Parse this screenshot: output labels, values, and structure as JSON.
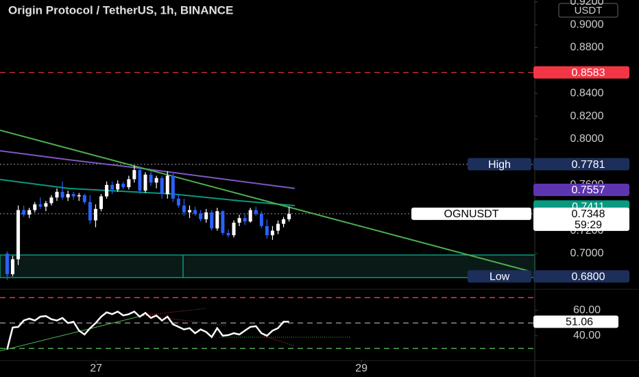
{
  "chart_data": {
    "type": "candlestick",
    "title": "Origin Protocol / TetherUS, 1h, BINANCE",
    "currency": "USDT",
    "up_color": "#ffffff",
    "down_color": "#2962ff",
    "x": [
      26.33,
      26.3717,
      26.4133,
      26.455,
      26.4967,
      26.5383,
      26.58,
      26.6217,
      26.6633,
      26.705,
      26.7467,
      26.7883,
      26.83,
      26.8717,
      26.9133,
      26.955,
      26.9967,
      27.0383,
      27.08,
      27.1217,
      27.1633,
      27.205,
      27.2467,
      27.2883,
      27.33,
      27.3717,
      27.4133,
      27.455,
      27.4967,
      27.5383,
      27.58,
      27.6217,
      27.6633,
      27.705,
      27.7467,
      27.7883,
      27.83,
      27.8717,
      27.9133,
      27.955,
      27.9967,
      28.0383,
      28.08,
      28.1217,
      28.1633,
      28.205,
      28.2467,
      28.2883,
      28.33,
      28.3717,
      28.4133,
      28.455
    ],
    "open": [
      0.7,
      0.682,
      0.695,
      0.738,
      0.734,
      0.738,
      0.743,
      0.741,
      0.744,
      0.749,
      0.754,
      0.749,
      0.752,
      0.75,
      0.751,
      0.745,
      0.729,
      0.739,
      0.75,
      0.76,
      0.756,
      0.761,
      0.758,
      0.765,
      0.773,
      0.755,
      0.769,
      0.762,
      0.766,
      0.752,
      0.768,
      0.748,
      0.742,
      0.736,
      0.738,
      0.735,
      0.73,
      0.736,
      0.722,
      0.737,
      0.718,
      0.716,
      0.727,
      0.731,
      0.728,
      0.738,
      0.735,
      0.724,
      0.716,
      0.72,
      0.726,
      0.73
    ],
    "high": [
      0.702,
      0.698,
      0.742,
      0.742,
      0.74,
      0.745,
      0.749,
      0.746,
      0.751,
      0.757,
      0.763,
      0.755,
      0.754,
      0.753,
      0.752,
      0.751,
      0.743,
      0.752,
      0.763,
      0.763,
      0.764,
      0.763,
      0.768,
      0.777,
      0.776,
      0.771,
      0.772,
      0.768,
      0.768,
      0.772,
      0.77,
      0.752,
      0.748,
      0.742,
      0.741,
      0.738,
      0.739,
      0.738,
      0.74,
      0.738,
      0.721,
      0.729,
      0.734,
      0.735,
      0.74,
      0.741,
      0.737,
      0.73,
      0.724,
      0.729,
      0.732,
      0.741
    ],
    "low": [
      0.677,
      0.68,
      0.69,
      0.732,
      0.731,
      0.736,
      0.739,
      0.737,
      0.742,
      0.746,
      0.747,
      0.746,
      0.747,
      0.746,
      0.743,
      0.726,
      0.723,
      0.737,
      0.748,
      0.752,
      0.754,
      0.756,
      0.756,
      0.762,
      0.752,
      0.753,
      0.759,
      0.757,
      0.748,
      0.748,
      0.745,
      0.74,
      0.733,
      0.731,
      0.733,
      0.728,
      0.727,
      0.72,
      0.72,
      0.716,
      0.714,
      0.714,
      0.724,
      0.725,
      0.727,
      0.733,
      0.722,
      0.713,
      0.712,
      0.717,
      0.723,
      0.728
    ],
    "close": [
      0.682,
      0.695,
      0.738,
      0.734,
      0.738,
      0.743,
      0.741,
      0.744,
      0.749,
      0.754,
      0.749,
      0.752,
      0.75,
      0.751,
      0.745,
      0.729,
      0.739,
      0.75,
      0.76,
      0.756,
      0.761,
      0.758,
      0.765,
      0.773,
      0.755,
      0.769,
      0.762,
      0.766,
      0.752,
      0.768,
      0.748,
      0.742,
      0.736,
      0.738,
      0.735,
      0.73,
      0.736,
      0.722,
      0.737,
      0.718,
      0.716,
      0.727,
      0.731,
      0.728,
      0.738,
      0.735,
      0.724,
      0.716,
      0.72,
      0.726,
      0.73,
      0.7348
    ],
    "xlim": [
      26.276,
      30.307
    ],
    "xticks": [
      27,
      29
    ],
    "ylim": [
      0.67,
      0.9216
    ],
    "yticks": [
      {
        "value": 0.92,
        "label": "0.9200"
      },
      {
        "value": 0.9,
        "label": "0.9000"
      },
      {
        "value": 0.88,
        "label": "0.8800"
      },
      {
        "value": 0.84,
        "label": "0.8400"
      },
      {
        "value": 0.82,
        "label": "0.8200"
      },
      {
        "value": 0.8,
        "label": "0.8000"
      },
      {
        "value": 0.76,
        "label": "0.7600"
      },
      {
        "value": 0.72,
        "label": "0.7200"
      },
      {
        "value": 0.7,
        "label": "0.7000"
      }
    ],
    "lines": [
      {
        "color": "#7e57c2",
        "x": [
          26.276,
          26.793,
          27.31,
          27.826,
          28.498
        ],
        "values": [
          0.7898,
          0.782,
          0.7749,
          0.7671,
          0.7569
        ]
      },
      {
        "color": "#089981",
        "x": [
          26.276,
          26.793,
          27.568,
          28.085,
          28.498
        ],
        "values": [
          0.7647,
          0.7569,
          0.7521,
          0.7461,
          0.7419
        ]
      },
      {
        "color": "#4caf50",
        "x": [
          26.276,
          30.255
        ],
        "values": [
          0.8078,
          0.685
        ]
      }
    ],
    "price_labels": [
      {
        "value": 0.8583,
        "color": "#f23645",
        "text_color": "#ffffff",
        "line": "#f23645"
      },
      {
        "value": 0.7781,
        "name": "High",
        "color": "#1c2e5a",
        "text_color": "#ffffff",
        "line": "#888888"
      },
      {
        "value": 0.7557,
        "color": "#5e35b1",
        "text_color": "#ffffff"
      },
      {
        "value": 0.7411,
        "color": "#089981",
        "text_color": "#ffffff"
      },
      {
        "value": 0.7348,
        "name": "OGNUSDT",
        "countdown": "59:29",
        "color": "#ffffff",
        "text_color": "#000000",
        "line": "#888888"
      },
      {
        "value": 0.68,
        "label": "0.6800",
        "name": "Low",
        "color": "#1c2e5a",
        "text_color": "#ffffff"
      }
    ],
    "rsi": {
      "ylim": [
        21,
        75
      ],
      "yticks": [
        {
          "value": 60,
          "label": "60.00"
        },
        {
          "value": 40,
          "label": "40.00"
        }
      ],
      "levels": [
        {
          "value": 70,
          "color": "#f23645"
        },
        {
          "value": 50,
          "color": "#888888"
        },
        {
          "value": 30,
          "color": "#4caf50"
        }
      ],
      "color": "#ffffff",
      "values": [
        29.2,
        46.5,
        47,
        52,
        53.5,
        52,
        55,
        55.5,
        53,
        52,
        54,
        50,
        51,
        44,
        41,
        46,
        50,
        55,
        58.5,
        57,
        59,
        56,
        57,
        59,
        55,
        58,
        54,
        56,
        52,
        55,
        49,
        47,
        45,
        46,
        42,
        45,
        43,
        39,
        46,
        40,
        40.5,
        42,
        41,
        44,
        47,
        47.5,
        42,
        40,
        44,
        46,
        51,
        51.06
      ]
    }
  }
}
